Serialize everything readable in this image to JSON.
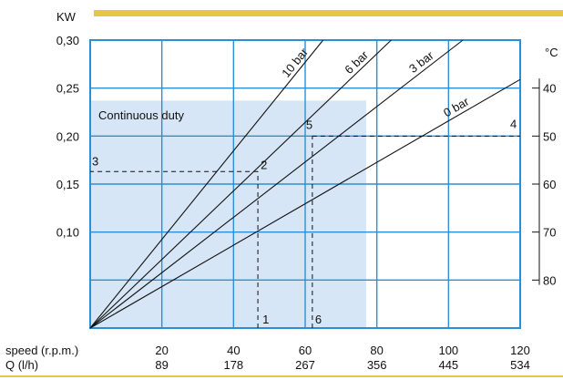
{
  "chart_data": {
    "type": "line",
    "y_unit_label": "KW",
    "right_unit_label": "°C",
    "x_rows": [
      {
        "label": "speed (r.p.m.)",
        "ticks": [
          "20",
          "40",
          "60",
          "80",
          "100",
          "120"
        ]
      },
      {
        "label": "Q (l/h)",
        "ticks": [
          "89",
          "178",
          "267",
          "356",
          "445",
          "534"
        ]
      }
    ],
    "x": {
      "values": [
        20,
        40,
        60,
        80,
        100,
        120
      ],
      "range": [
        0,
        120
      ]
    },
    "y": {
      "ticks": [
        "0,30",
        "0,25",
        "0,20",
        "0,15",
        "0,10"
      ],
      "values": [
        0.3,
        0.25,
        0.2,
        0.15,
        0.1
      ],
      "range": [
        0,
        0.3
      ]
    },
    "right_axis": {
      "ticks": [
        "40",
        "50",
        "60",
        "70",
        "80"
      ],
      "kw_at": [
        0.25,
        0.2,
        0.15,
        0.1,
        0.05
      ]
    },
    "continuous_duty": {
      "label": "Continuous duty",
      "x_max": 77,
      "y_max": 0.237
    },
    "series": [
      {
        "name": "10 bar",
        "points": [
          [
            0,
            0
          ],
          [
            65,
            0.3
          ]
        ]
      },
      {
        "name": "6 bar",
        "points": [
          [
            0,
            0
          ],
          [
            84,
            0.3
          ]
        ]
      },
      {
        "name": "3 bar",
        "points": [
          [
            0,
            0
          ],
          [
            104,
            0.3
          ]
        ]
      },
      {
        "name": "0 bar",
        "points": [
          [
            0,
            0
          ],
          [
            120,
            0.259
          ]
        ]
      }
    ],
    "guide_points": [
      {
        "label": "1",
        "x": 46.8,
        "y": 0
      },
      {
        "label": "2",
        "x": 46.8,
        "y": 0.163
      },
      {
        "label": "3",
        "x": 0,
        "y": 0.163
      },
      {
        "label": "4",
        "x": 120,
        "y": 0.2
      },
      {
        "label": "5",
        "x": 62,
        "y": 0.2
      },
      {
        "label": "6",
        "x": 62,
        "y": 0
      }
    ],
    "colors": {
      "grid": "#2a8fd6",
      "duty_fill": "#d6e6f6",
      "accent_bar": "#e6c64a",
      "curve": "#111111"
    },
    "grid": true
  }
}
